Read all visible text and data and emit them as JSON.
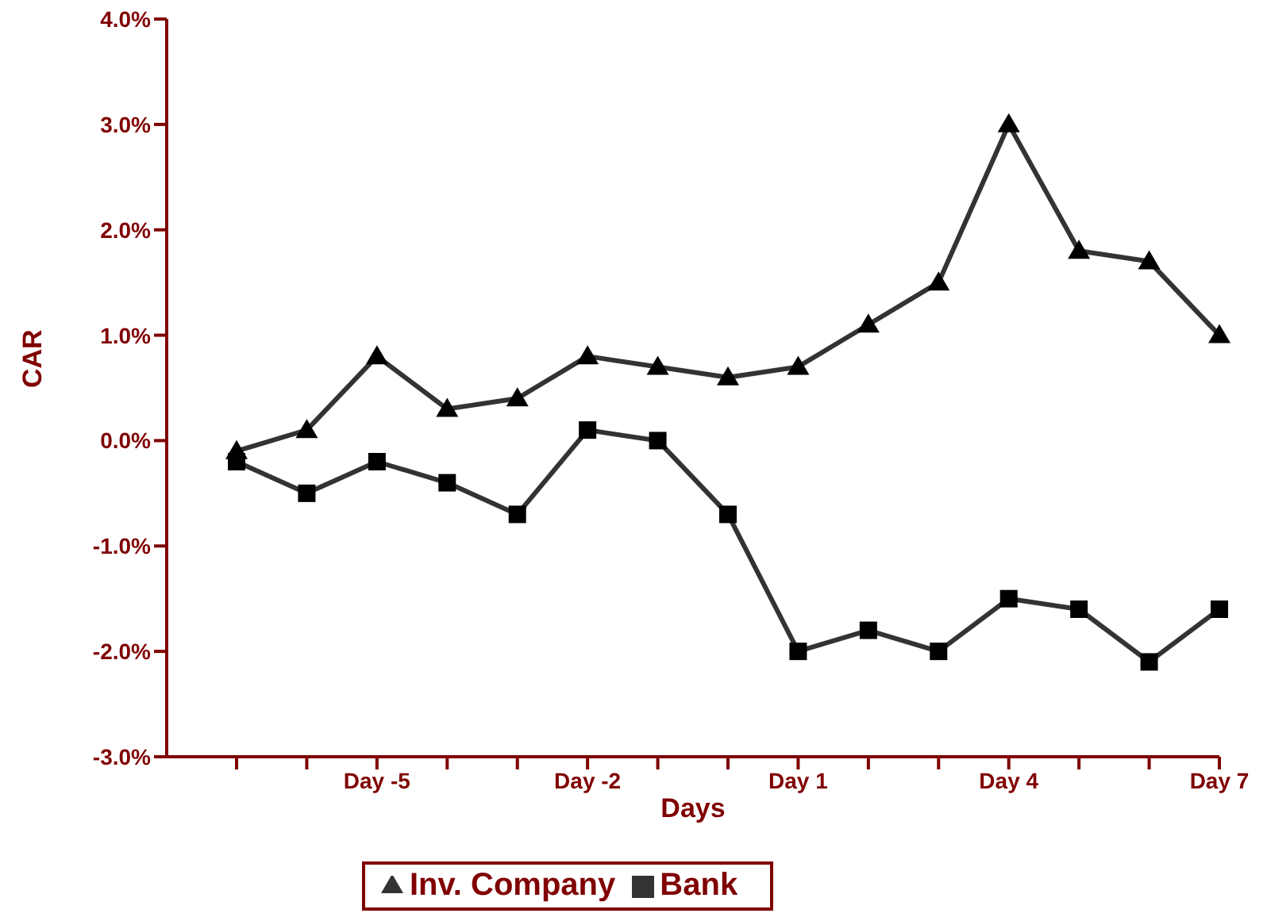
{
  "chart_data": {
    "type": "line",
    "xlabel": "Days",
    "ylabel": "CAR",
    "categories": [
      null,
      null,
      "Day -5",
      null,
      null,
      "Day -2",
      null,
      null,
      "Day 1",
      null,
      null,
      "Day 4",
      null,
      null,
      "Day 7"
    ],
    "series": [
      {
        "name": "Inv. Company",
        "color": "#333333",
        "marker": "triangle",
        "values": [
          -0.1,
          0.1,
          0.8,
          0.3,
          0.4,
          0.8,
          0.7,
          0.6,
          0.7,
          1.1,
          1.5,
          3.0,
          1.8,
          1.7,
          1.0
        ]
      },
      {
        "name": "Bank",
        "color": "#333333",
        "marker": "square",
        "values": [
          -0.2,
          -0.5,
          -0.2,
          -0.4,
          -0.7,
          0.1,
          0.0,
          -0.7,
          -2.0,
          -1.8,
          -2.0,
          -1.5,
          -1.6,
          -2.1,
          -1.6
        ]
      }
    ],
    "ylim": [
      -3,
      4
    ],
    "yticks": [
      {
        "value": -3,
        "label": "-3.0%"
      },
      {
        "value": -2,
        "label": "-2.0%"
      },
      {
        "value": -1,
        "label": "-1.0%"
      },
      {
        "value": 0,
        "label": "0.0%"
      },
      {
        "value": 1,
        "label": "1.0%"
      },
      {
        "value": 2,
        "label": "2.0%"
      },
      {
        "value": 3,
        "label": "3.0%"
      },
      {
        "value": 4,
        "label": "4.0%"
      }
    ],
    "grid": false,
    "legend": "bottom",
    "line_style": "solid"
  }
}
